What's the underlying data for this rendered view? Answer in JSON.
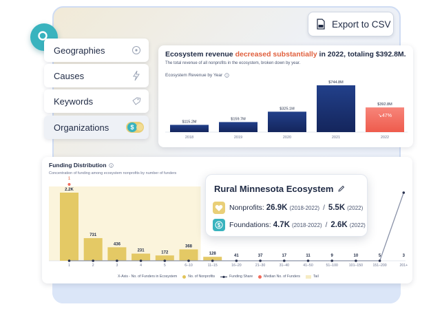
{
  "sidebar": {
    "items": [
      {
        "label": "Geographies",
        "icon": "location-pin-icon"
      },
      {
        "label": "Causes",
        "icon": "lightning-icon"
      },
      {
        "label": "Keywords",
        "icon": "tag-icon"
      },
      {
        "label": "Organizations",
        "icon": "money-toggle-icon"
      }
    ]
  },
  "toolbar": {
    "export_label": "Export to CSV"
  },
  "revenue": {
    "title_pre": "Ecosystem revenue ",
    "title_highlight": "decreased substantially",
    "title_post": " in 2022, totaling $392.8M.",
    "subtitle": "The total revenue of all nonprofits in the ecosystem, broken down by year.",
    "chart_label": "Ecosystem Revenue by Year",
    "change_badge": "↘47%"
  },
  "funding": {
    "title": "Funding Distribution",
    "subtitle": "Concentration of funding among ecosystem nonprofits by number of funders",
    "top_marker": "1",
    "legend": {
      "xaxis": "X-Axis - No. of Funders in Ecosystem",
      "nonprofits": "No. of Nonprofits",
      "share": "Funding Share",
      "median": "Median No. of Funders",
      "tail": "Tail"
    }
  },
  "ecosystem": {
    "title": "Rural Minnesota Ecosystem",
    "nonprofits_label": "Nonprofits:",
    "nonprofits_value": "26.9K",
    "nonprofits_range": "(2018-2022)",
    "nonprofits_value2": "5.5K",
    "nonprofits_year": "(2022)",
    "foundations_label": "Foundations:",
    "foundations_value": "4.7K",
    "foundations_range": "(2018-2022)",
    "foundations_value2": "2.6K",
    "foundations_year": "(2022)",
    "separator": "/"
  },
  "colors": {
    "accent": "#39b3be",
    "bar_dark": "#1b2f6e",
    "bar_decline": "#f26b5b",
    "gold": "#e2c45a",
    "highlight": "#e0603e"
  },
  "chart_data": [
    {
      "type": "bar",
      "title": "Ecosystem Revenue by Year",
      "categories": [
        "2018",
        "2019",
        "2020",
        "2021",
        "2022"
      ],
      "values": [
        115.2,
        159.7,
        325.1,
        744.8,
        392.8
      ],
      "labels": [
        "$115.2M",
        "$159.7M",
        "$325.1M",
        "$744.8M",
        "$392.8M"
      ],
      "ylim": [
        0,
        800
      ]
    },
    {
      "type": "bar",
      "title": "Funding Distribution",
      "categories": [
        "1",
        "2",
        "3",
        "4",
        "5",
        "6–10",
        "11–15",
        "16–20",
        "21–30",
        "31–40",
        "41–50",
        "51–100",
        "101–150",
        "151–200",
        "201+"
      ],
      "series": [
        {
          "name": "No. of Nonprofits",
          "values": [
            2200,
            731,
            436,
            231,
            172,
            368,
            128,
            41,
            37,
            17,
            11,
            9,
            10,
            5,
            3
          ],
          "labels": [
            "2.2K",
            "731",
            "436",
            "231",
            "172",
            "368",
            "128",
            "41",
            "37",
            "17",
            "11",
            "9",
            "10",
            "5",
            "3"
          ]
        },
        {
          "name": "Funding Share",
          "values": [
            0,
            0,
            0,
            0,
            0,
            0,
            0,
            0,
            0,
            0,
            0,
            0,
            0,
            0,
            0.9
          ]
        }
      ],
      "xlabel": "X-Axis - No. of Funders in Ecosystem",
      "median_category": "1",
      "tail_from": "6–10"
    }
  ]
}
